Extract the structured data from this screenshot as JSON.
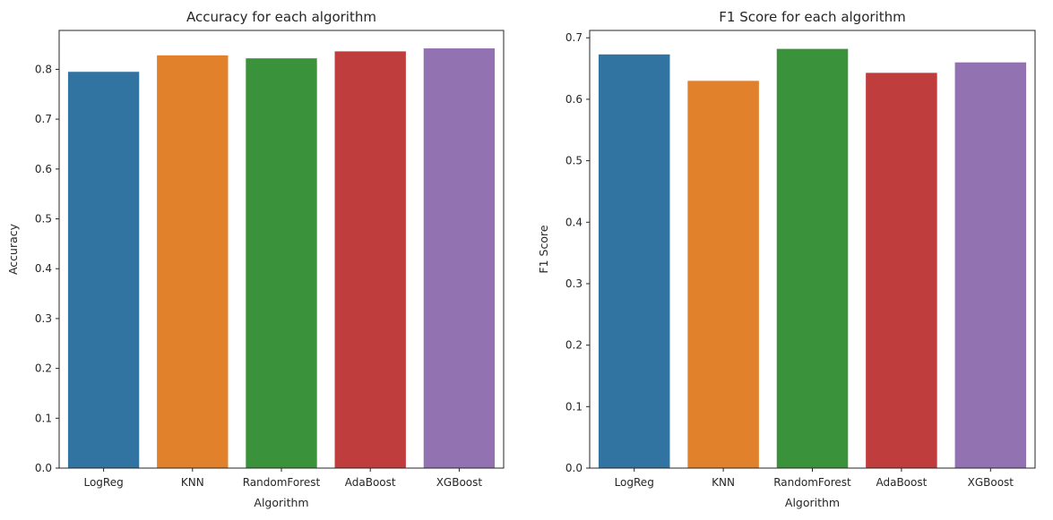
{
  "chart_data": [
    {
      "type": "bar",
      "title": "Accuracy for each algorithm",
      "xlabel": "Algorithm",
      "ylabel": "Accuracy",
      "categories": [
        "LogReg",
        "KNN",
        "RandomForest",
        "AdaBoost",
        "XGBoost"
      ],
      "values": [
        0.795,
        0.828,
        0.822,
        0.836,
        0.842
      ],
      "colors": [
        "#3274a1",
        "#e1812c",
        "#3a923a",
        "#c03d3e",
        "#9372b2"
      ],
      "ylim": [
        0,
        0.878
      ],
      "yticks": [
        0.0,
        0.1,
        0.2,
        0.3,
        0.4,
        0.5,
        0.6,
        0.7,
        0.8
      ],
      "ytick_labels": [
        "0.0",
        "0.1",
        "0.2",
        "0.3",
        "0.4",
        "0.5",
        "0.6",
        "0.7",
        "0.8"
      ],
      "grid": false,
      "legend": "none"
    },
    {
      "type": "bar",
      "title": "F1 Score for each algorithm",
      "xlabel": "Algorithm",
      "ylabel": "F1 Score",
      "categories": [
        "LogReg",
        "KNN",
        "RandomForest",
        "AdaBoost",
        "XGBoost"
      ],
      "values": [
        0.673,
        0.63,
        0.682,
        0.643,
        0.66
      ],
      "colors": [
        "#3274a1",
        "#e1812c",
        "#3a923a",
        "#c03d3e",
        "#9372b2"
      ],
      "ylim": [
        0,
        0.712
      ],
      "yticks": [
        0.0,
        0.1,
        0.2,
        0.3,
        0.4,
        0.5,
        0.6,
        0.7
      ],
      "ytick_labels": [
        "0.0",
        "0.1",
        "0.2",
        "0.3",
        "0.4",
        "0.5",
        "0.6",
        "0.7"
      ],
      "grid": false,
      "legend": "none"
    }
  ]
}
